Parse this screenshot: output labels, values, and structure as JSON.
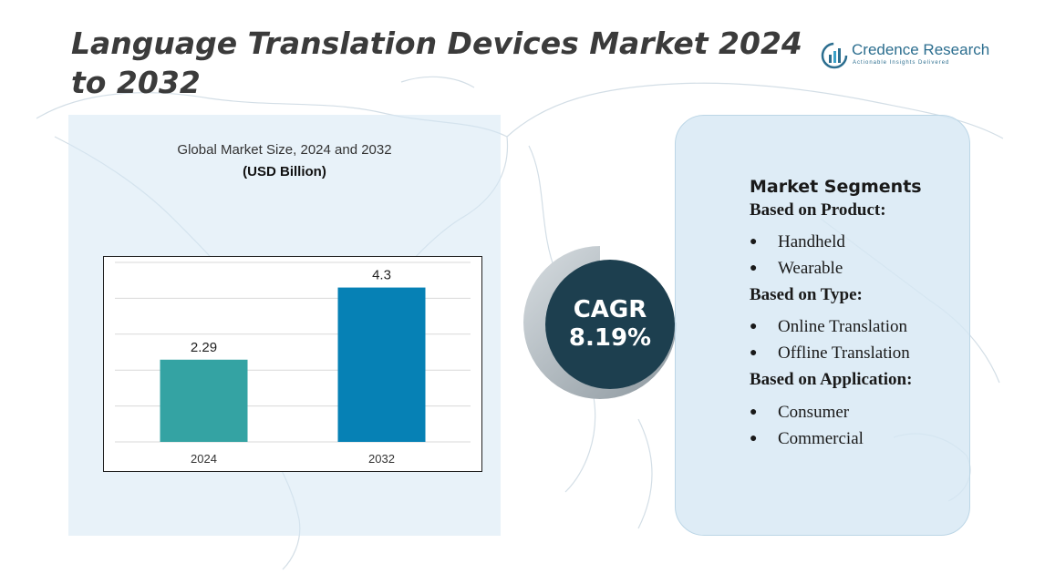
{
  "header": {
    "title": "Language Translation Devices Market 2024 to 2032"
  },
  "logo": {
    "name": "Credence Research",
    "tagline": "Actionable Insights Delivered"
  },
  "chart_data": {
    "type": "bar",
    "title": "Global Market Size, 2024 and 2032",
    "ylabel": "(USD Billion)",
    "categories": [
      "2024",
      "2032"
    ],
    "values": [
      2.29,
      4.3
    ],
    "data_labels": [
      "2.29",
      "4.3"
    ],
    "ylim": [
      0,
      5
    ],
    "grid": true,
    "colors": [
      "#34a3a3",
      "#0681b5"
    ]
  },
  "cagr": {
    "label": "CAGR",
    "value": "8.19%"
  },
  "segments": {
    "heading": "Market Segments",
    "groups": [
      {
        "title": "Based on Product:",
        "items": [
          "Handheld",
          "Wearable"
        ]
      },
      {
        "title": "Based on Type:",
        "items": [
          "Online Translation",
          "Offline Translation"
        ]
      },
      {
        "title": "Based on Application:",
        "items": [
          "Consumer",
          "Commercial"
        ]
      }
    ]
  },
  "colors": {
    "panel": "#d6e7f4",
    "cagr_circle": "#1d3f4f"
  }
}
